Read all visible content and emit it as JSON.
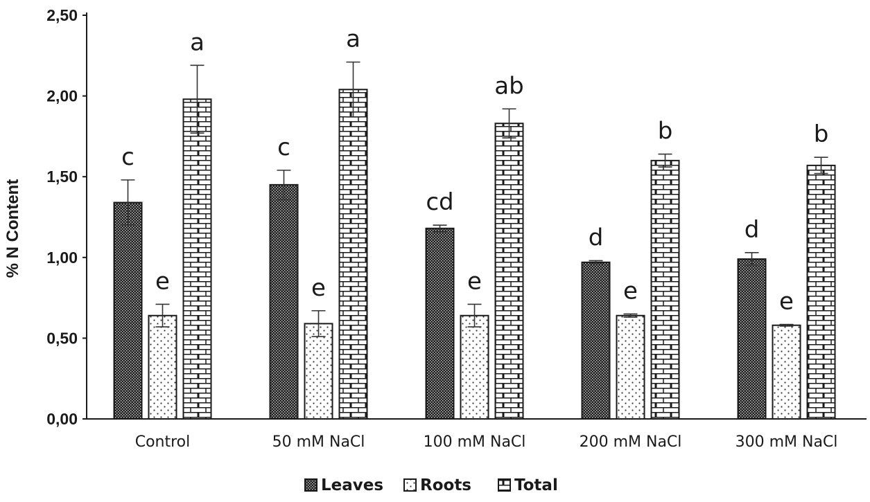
{
  "chart_data": {
    "type": "bar",
    "ylabel": "% N Content",
    "ylim": [
      0,
      2.5
    ],
    "yticks": [
      "0,00",
      "0,50",
      "1,00",
      "1,50",
      "2,00",
      "2,50"
    ],
    "ytick_values": [
      0,
      0.5,
      1.0,
      1.5,
      2.0,
      2.5
    ],
    "categories": [
      "Control",
      "50 mM NaCl",
      "100 mM NaCl",
      "200 mM NaCl",
      "300 mM NaCl"
    ],
    "series": [
      {
        "name": "Leaves",
        "values": [
          1.34,
          1.45,
          1.18,
          0.97,
          0.99
        ],
        "errors": [
          0.14,
          0.09,
          0.02,
          0.01,
          0.04
        ],
        "significance": [
          "c",
          "c",
          "cd",
          "d",
          "d"
        ]
      },
      {
        "name": "Roots",
        "values": [
          0.64,
          0.59,
          0.64,
          0.64,
          0.58
        ],
        "errors": [
          0.07,
          0.08,
          0.07,
          0.01,
          0.005
        ],
        "significance": [
          "e",
          "e",
          "e",
          "e",
          "e"
        ]
      },
      {
        "name": "Total",
        "values": [
          1.98,
          2.04,
          1.83,
          1.6,
          1.57
        ],
        "errors": [
          0.21,
          0.17,
          0.09,
          0.04,
          0.05
        ],
        "significance": [
          "a",
          "a",
          "ab",
          "b",
          "b"
        ]
      }
    ],
    "legend_position": "bottom-center",
    "grid": false
  }
}
